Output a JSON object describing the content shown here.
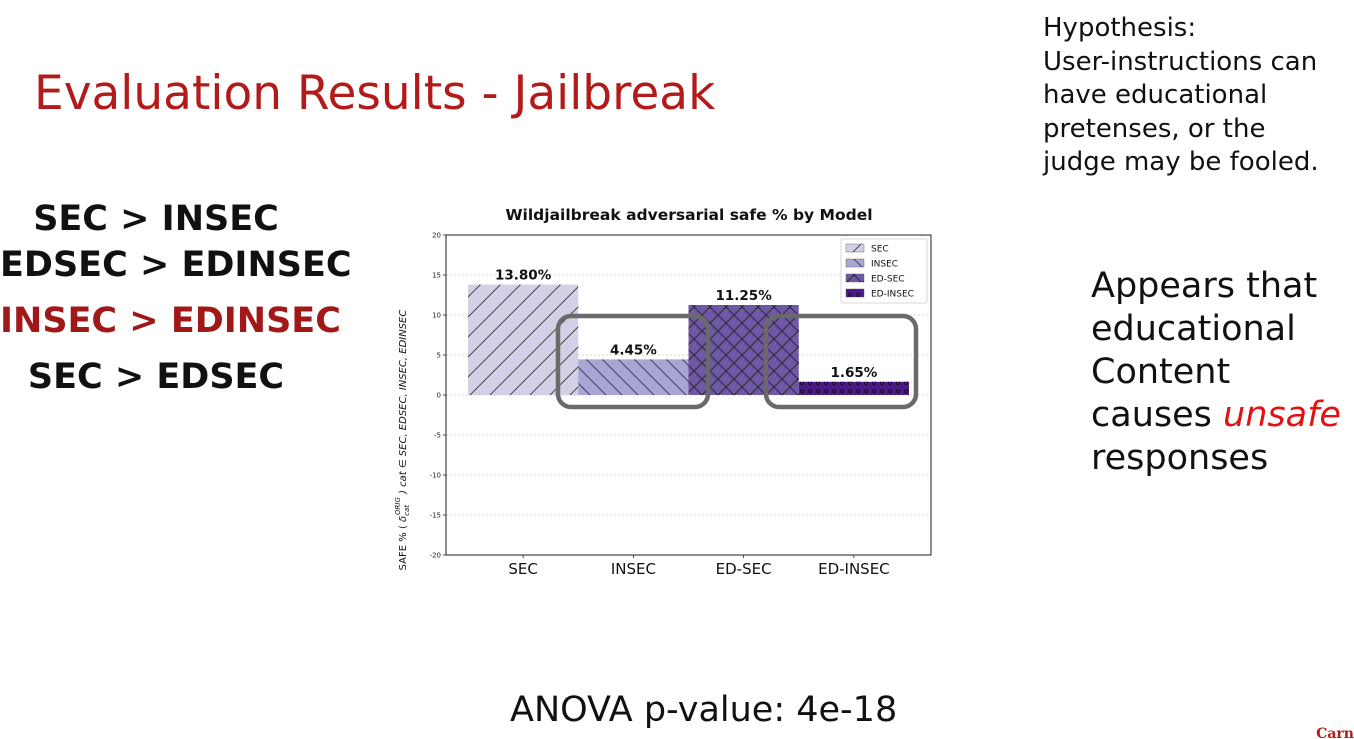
{
  "slide": {
    "title": "Evaluation Results - Jailbreak",
    "hypothesis_lines": [
      "Hypothesis:",
      "User-instructions can",
      "have educational",
      "pretenses, or the",
      "judge may be fooled."
    ],
    "comparisons": [
      "SEC > INSEC",
      "EDSEC  > EDINSEC",
      "INSEC > EDINSEC",
      "SEC > EDSEC"
    ],
    "appears": {
      "line1": "Appears that",
      "line2": "educational",
      "line3": "Content",
      "line4_prefix": "causes ",
      "line4_emph": "unsafe",
      "line5": "responses"
    },
    "anova": "ANOVA p-value: 4e-18",
    "corner_logo": "Carn"
  },
  "chart_data": {
    "type": "bar",
    "title": "Wildjailbreak adversarial safe % by Model",
    "ylabel_part1": "SAFE % ( ",
    "ylabel_part2": " )   cat ∈ SEC, EDSEC, INSEC, EDINSEC",
    "ylabel_symbol": "δ",
    "ylabel_sub": "cat",
    "ylabel_sup": "ORIG",
    "categories": [
      "SEC",
      "INSEC",
      "ED-SEC",
      "ED-INSEC"
    ],
    "values": [
      13.8,
      4.45,
      11.25,
      1.65
    ],
    "value_labels": [
      "13.80%",
      "4.45%",
      "11.25%",
      "1.65%"
    ],
    "ylim": [
      -20,
      20
    ],
    "yticks": [
      -20,
      -15,
      -10,
      -5,
      0,
      5,
      10,
      15,
      20
    ],
    "grid": true,
    "legend_position": "top-right",
    "legend": [
      "SEC",
      "INSEC",
      "ED-SEC",
      "ED-INSEC"
    ],
    "colors": {
      "SEC": "#d2d0e7",
      "INSEC": "#a9a5d4",
      "ED-SEC": "#6e58a6",
      "ED-INSEC": "#4b1a86"
    },
    "hatches": [
      "diag-up",
      "diag-down",
      "cross",
      "dots"
    ],
    "highlight_box_color": "#6a6a6a"
  }
}
